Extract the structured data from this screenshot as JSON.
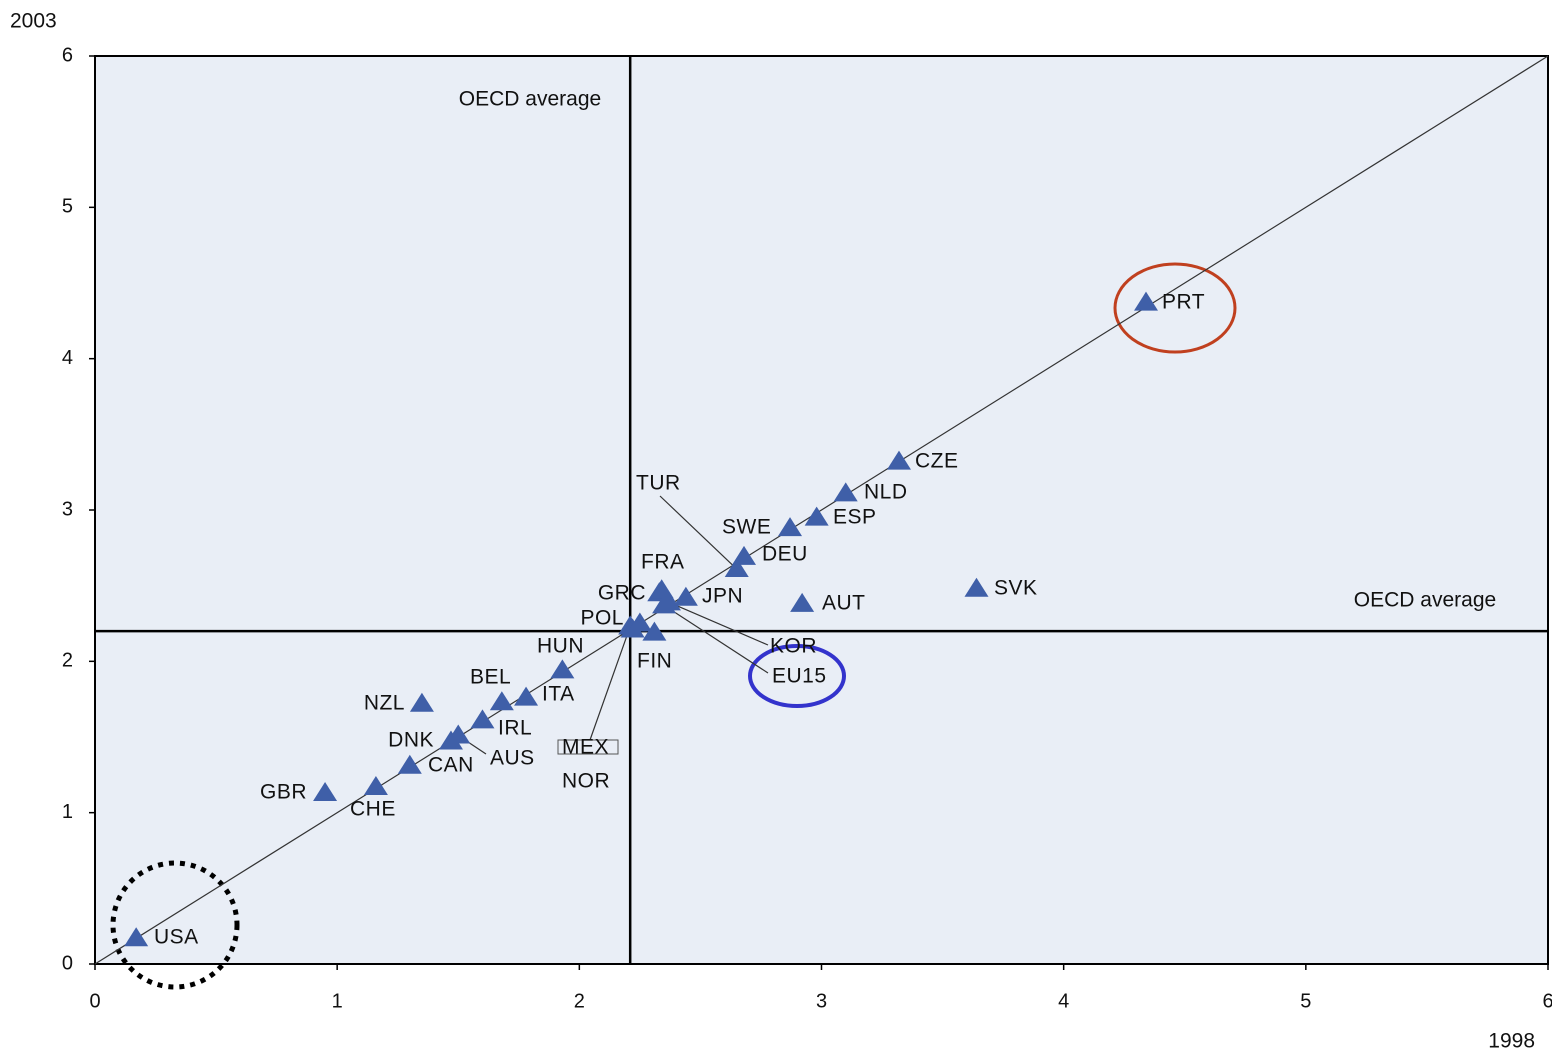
{
  "chart_data": {
    "type": "scatter",
    "x_label": "1998",
    "y_label": "2003",
    "xlim": [
      0,
      6
    ],
    "ylim": [
      0,
      6
    ],
    "xticks": [
      0,
      1,
      2,
      3,
      4,
      5,
      6
    ],
    "yticks": [
      0,
      1,
      2,
      3,
      4,
      5,
      6
    ],
    "oecd_average": {
      "label_vertical": "OECD average",
      "label_horizontal": "OECD average",
      "x": 2.21,
      "y": 2.2
    },
    "series": [
      {
        "color": "#3f5fa8",
        "labels": [
          "USA",
          "GBR",
          "CHE",
          "CAN",
          "DNK",
          "AUS",
          "IRL",
          "NZL",
          "BEL",
          "ITA",
          "HUN",
          "MEX",
          "NOR",
          "POL",
          "FIN",
          "GRC",
          "FRA",
          "KOR",
          "EU15",
          "JPN",
          "TUR",
          "DEU",
          "SWE",
          "ESP",
          "AUT",
          "NLD",
          "CZE",
          "SVK",
          "PRT"
        ],
        "x": [
          0.17,
          0.95,
          1.16,
          1.3,
          1.47,
          1.5,
          1.6,
          1.35,
          1.68,
          1.78,
          1.93,
          2.21,
          2.22,
          2.25,
          2.31,
          2.33,
          2.34,
          2.37,
          2.35,
          2.44,
          2.65,
          2.68,
          2.87,
          2.98,
          2.92,
          3.1,
          3.32,
          3.64,
          4.34
        ],
        "values": [
          0.17,
          1.13,
          1.17,
          1.31,
          1.47,
          1.51,
          1.61,
          1.72,
          1.73,
          1.76,
          1.94,
          2.23,
          2.21,
          2.25,
          2.19,
          2.45,
          2.47,
          2.39,
          2.37,
          2.42,
          2.61,
          2.69,
          2.88,
          2.95,
          2.38,
          3.11,
          3.32,
          2.48,
          4.37
        ]
      }
    ]
  }
}
